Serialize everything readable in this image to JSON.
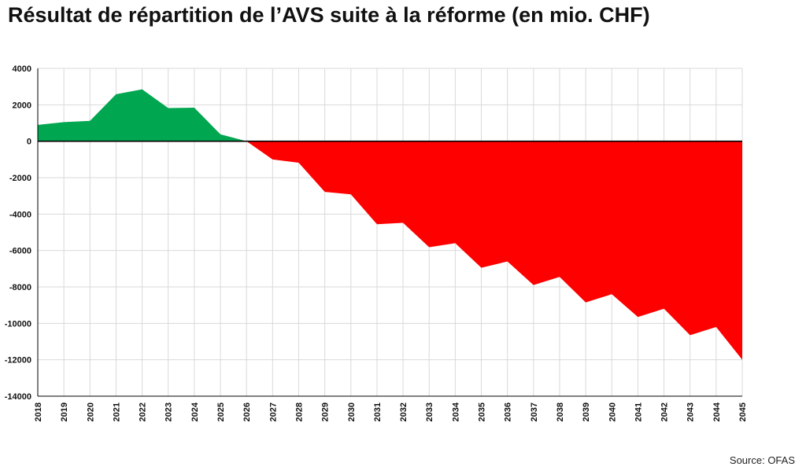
{
  "title": "Résultat de répartition de l’AVS suite à la réforme (en mio. CHF)",
  "source": "Source: OFAS",
  "colors": {
    "positive": "#00a650",
    "negative": "#ff0000",
    "grid": "#d9d9d9",
    "zero_line": "#000000"
  },
  "chart_data": {
    "type": "area",
    "x": [
      2018,
      2019,
      2020,
      2021,
      2022,
      2023,
      2024,
      2025,
      2026,
      2027,
      2028,
      2029,
      2030,
      2031,
      2032,
      2033,
      2034,
      2035,
      2036,
      2037,
      2038,
      2039,
      2040,
      2041,
      2042,
      2043,
      2044,
      2045
    ],
    "values": [
      900,
      1050,
      1120,
      2580,
      2850,
      1820,
      1840,
      380,
      0,
      -1000,
      -1180,
      -2780,
      -2920,
      -4560,
      -4480,
      -5820,
      -5600,
      -6950,
      -6600,
      -7900,
      -7450,
      -8850,
      -8400,
      -9650,
      -9200,
      -10650,
      -10200,
      -12000
    ],
    "ylim": [
      -14000,
      4000
    ],
    "yticks": [
      4000,
      2000,
      0,
      -2000,
      -4000,
      -6000,
      -8000,
      -10000,
      -12000,
      -14000
    ],
    "xlabel": "",
    "ylabel": "",
    "grid": true,
    "legend": "none"
  }
}
